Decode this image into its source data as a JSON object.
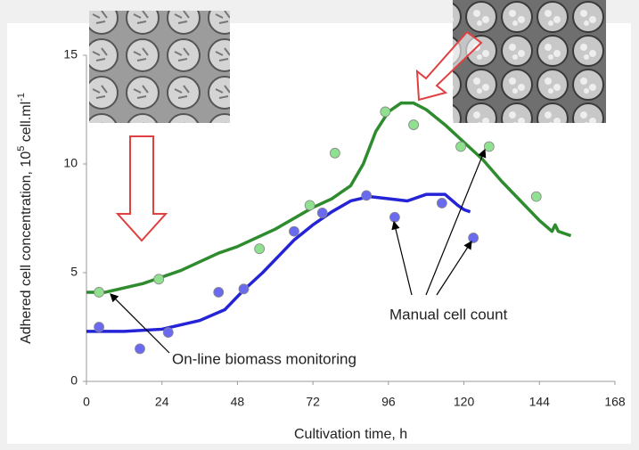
{
  "chart_data": {
    "type": "line",
    "xlabel": "Cultivation time, h",
    "ylabel": [
      "Adhered cell concentration, 10",
      "5",
      " cell.ml",
      "-1"
    ],
    "annotations": [
      "On-line biomass monitoring",
      "Manual cell count"
    ],
    "xlim": [
      0,
      168
    ],
    "xticks": [
      0,
      24,
      48,
      72,
      96,
      120,
      144,
      168
    ],
    "ylim": [
      0,
      15
    ],
    "yticks": [
      0,
      5,
      10,
      15
    ],
    "grid": false,
    "series": [
      {
        "type": "line",
        "color": "#2e8b2e",
        "x": [
          0,
          6,
          12,
          18,
          24,
          30,
          36,
          42,
          48,
          54,
          60,
          66,
          72,
          78,
          84,
          88,
          92,
          96,
          100,
          104,
          108,
          114,
          120,
          126,
          132,
          138,
          144,
          148,
          149,
          150,
          154
        ],
        "values": [
          4.1,
          4.1,
          4.3,
          4.5,
          4.8,
          5.1,
          5.5,
          5.9,
          6.2,
          6.6,
          7.0,
          7.5,
          8.0,
          8.4,
          9.0,
          10.0,
          11.5,
          12.4,
          12.8,
          12.8,
          12.5,
          11.8,
          11.0,
          10.2,
          9.2,
          8.3,
          7.4,
          6.9,
          7.2,
          6.9,
          6.7
        ]
      },
      {
        "type": "line",
        "color": "#2424d6",
        "x": [
          0,
          12,
          24,
          36,
          44,
          50,
          56,
          62,
          66,
          72,
          78,
          84,
          90,
          96,
          102,
          108,
          114,
          118,
          120,
          122
        ],
        "values": [
          2.3,
          2.3,
          2.4,
          2.8,
          3.3,
          4.2,
          5.0,
          5.9,
          6.5,
          7.2,
          7.8,
          8.3,
          8.5,
          8.4,
          8.3,
          8.6,
          8.6,
          8.1,
          7.9,
          7.8
        ]
      },
      {
        "type": "scatter",
        "color": "#8fe08f",
        "x": [
          4,
          23,
          55,
          71,
          79,
          95,
          104,
          119,
          128,
          143
        ],
        "values": [
          4.1,
          4.7,
          6.1,
          8.1,
          10.5,
          12.4,
          11.8,
          10.8,
          10.8,
          8.5
        ]
      },
      {
        "type": "scatter",
        "color": "#6a6af0",
        "x": [
          4,
          17,
          26,
          42,
          50,
          66,
          75,
          89,
          98,
          113,
          123
        ],
        "values": [
          2.5,
          1.5,
          2.25,
          4.1,
          4.25,
          6.9,
          7.75,
          8.55,
          7.55,
          8.2,
          6.6
        ]
      }
    ]
  }
}
